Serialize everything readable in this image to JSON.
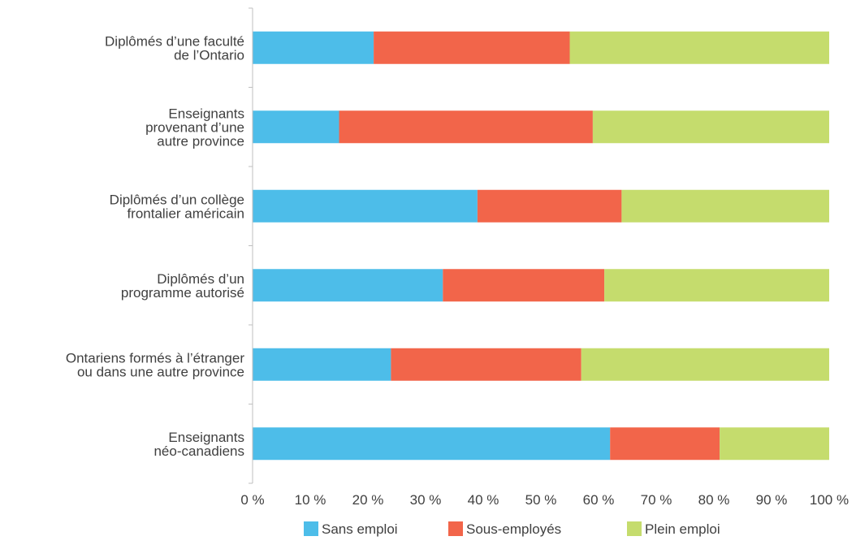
{
  "chart_data": {
    "type": "bar",
    "orientation": "horizontal",
    "stacked": true,
    "categories": [
      "Diplômés d’une faculté de l’Ontario",
      "Enseignants provenant d’une autre province",
      "Diplômés d’un collège frontalier américain",
      "Diplômés d’un programme autorisé",
      "Ontariens formés à l’étranger ou dans une autre province",
      "Enseignants néo-canadiens"
    ],
    "category_lines": [
      [
        "Diplômés d’une faculté",
        "de l’Ontario"
      ],
      [
        "Enseignants",
        "provenant d’une",
        "autre province"
      ],
      [
        "Diplômés d’un collège",
        "frontalier américain"
      ],
      [
        "Diplômés d’un",
        "programme autorisé"
      ],
      [
        "Ontariens formés à l’étranger",
        "ou dans une autre province"
      ],
      [
        "Enseignants",
        "néo-canadiens"
      ]
    ],
    "series": [
      {
        "name": "Sans emploi",
        "color": "#4dbde9",
        "values": [
          21,
          15,
          39,
          33,
          24,
          62
        ]
      },
      {
        "name": "Sous-employés",
        "color": "#f2654a",
        "values": [
          34,
          44,
          25,
          28,
          33,
          19
        ]
      },
      {
        "name": "Plein emploi",
        "color": "#c5dc6d",
        "values": [
          45,
          41,
          36,
          39,
          43,
          19
        ]
      }
    ],
    "xlim": [
      0,
      100
    ],
    "x_ticks": [
      0,
      10,
      20,
      30,
      40,
      50,
      60,
      70,
      80,
      90,
      100
    ],
    "x_tick_labels": [
      "0 %",
      "10 %",
      "20 %",
      "30 %",
      "40 %",
      "50 %",
      "60 %",
      "70 %",
      "80 %",
      "90 %",
      "100 %"
    ],
    "title": "",
    "xlabel": "",
    "ylabel": "",
    "grid": false,
    "legend_position": "bottom"
  }
}
